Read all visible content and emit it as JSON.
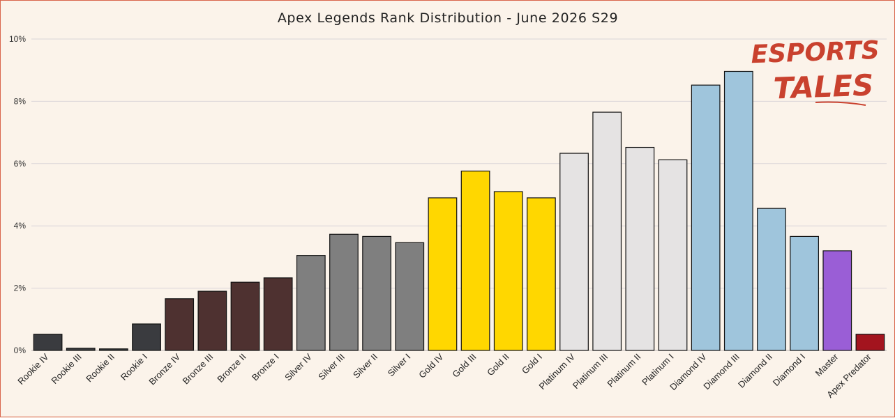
{
  "chart_data": {
    "type": "bar",
    "title": "Apex Legends Rank Distribution - June 2026 S29",
    "xlabel": "",
    "ylabel": "",
    "ylim": [
      0,
      10
    ],
    "yticks": [
      "0%",
      "2%",
      "4%",
      "6%",
      "8%",
      "10%"
    ],
    "grid": true,
    "legend": "none",
    "categories": [
      "Rookie IV",
      "Rookie III",
      "Rookie II",
      "Rookie I",
      "Bronze IV",
      "Bronze III",
      "Bronze II",
      "Bronze I",
      "Silver IV",
      "Silver III",
      "Silver II",
      "Silver I",
      "Gold IV",
      "Gold III",
      "Gold II",
      "Gold I",
      "Platinum IV",
      "Platinum III",
      "Platinum II",
      "Platinum I",
      "Diamond IV",
      "Diamond III",
      "Diamond II",
      "Diamond I",
      "Master",
      "Apex Predator"
    ],
    "values": [
      0.52,
      0.07,
      0.05,
      0.85,
      1.66,
      1.9,
      2.19,
      2.33,
      3.05,
      3.73,
      3.66,
      3.46,
      4.9,
      5.76,
      5.1,
      4.9,
      6.33,
      7.65,
      6.52,
      6.12,
      8.52,
      8.96,
      4.56,
      3.66,
      3.2,
      0.52
    ],
    "colors": [
      "#3a3b3f",
      "#3a3b3f",
      "#3a3b3f",
      "#3a3b3f",
      "#4e3130",
      "#4e3130",
      "#4e3130",
      "#4e3130",
      "#7f7f7f",
      "#7f7f7f",
      "#7f7f7f",
      "#7f7f7f",
      "#ffd700",
      "#ffd700",
      "#ffd700",
      "#ffd700",
      "#e5e3e3",
      "#e5e3e3",
      "#e5e3e3",
      "#e5e3e3",
      "#9fc5dc",
      "#9fc5dc",
      "#9fc5dc",
      "#9fc5dc",
      "#9a5ed6",
      "#a3141e"
    ]
  },
  "logo": {
    "line1": "ESPORTS",
    "line2": "TALES",
    "color": "#c9412e"
  }
}
